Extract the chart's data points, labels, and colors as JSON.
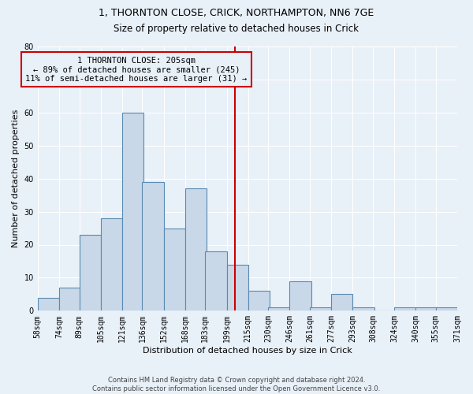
{
  "title1": "1, THORNTON CLOSE, CRICK, NORTHAMPTON, NN6 7GE",
  "title2": "Size of property relative to detached houses in Crick",
  "xlabel": "Distribution of detached houses by size in Crick",
  "ylabel": "Number of detached properties",
  "footer1": "Contains HM Land Registry data © Crown copyright and database right 2024.",
  "footer2": "Contains public sector information licensed under the Open Government Licence v3.0.",
  "bins": [
    "58sqm",
    "74sqm",
    "89sqm",
    "105sqm",
    "121sqm",
    "136sqm",
    "152sqm",
    "168sqm",
    "183sqm",
    "199sqm",
    "215sqm",
    "230sqm",
    "246sqm",
    "261sqm",
    "277sqm",
    "293sqm",
    "308sqm",
    "324sqm",
    "340sqm",
    "355sqm",
    "371sqm"
  ],
  "bar_values": [
    4,
    7,
    23,
    28,
    60,
    39,
    25,
    37,
    18,
    14,
    6,
    1,
    9,
    1,
    5,
    1,
    0,
    1,
    1,
    1
  ],
  "bar_color": "#c8d8e8",
  "bar_edge_color": "#5a8ab0",
  "bin_starts": [
    58,
    74,
    89,
    105,
    121,
    136,
    152,
    168,
    183,
    199,
    215,
    230,
    246,
    261,
    277,
    293,
    308,
    324,
    340,
    355
  ],
  "bin_width": 16,
  "ylim": [
    0,
    80
  ],
  "yticks": [
    0,
    10,
    20,
    30,
    40,
    50,
    60,
    70,
    80
  ],
  "vline_color": "#cc0000",
  "vline_x": 205,
  "annotation_text": "1 THORNTON CLOSE: 205sqm\n← 89% of detached houses are smaller (245)\n11% of semi-detached houses are larger (31) →",
  "annotation_box_color": "#cc0000",
  "bg_color": "#e8f0f8",
  "grid_color": "#ffffff",
  "title1_fontsize": 9,
  "title2_fontsize": 8.5,
  "axis_label_fontsize": 8,
  "tick_fontsize": 7
}
